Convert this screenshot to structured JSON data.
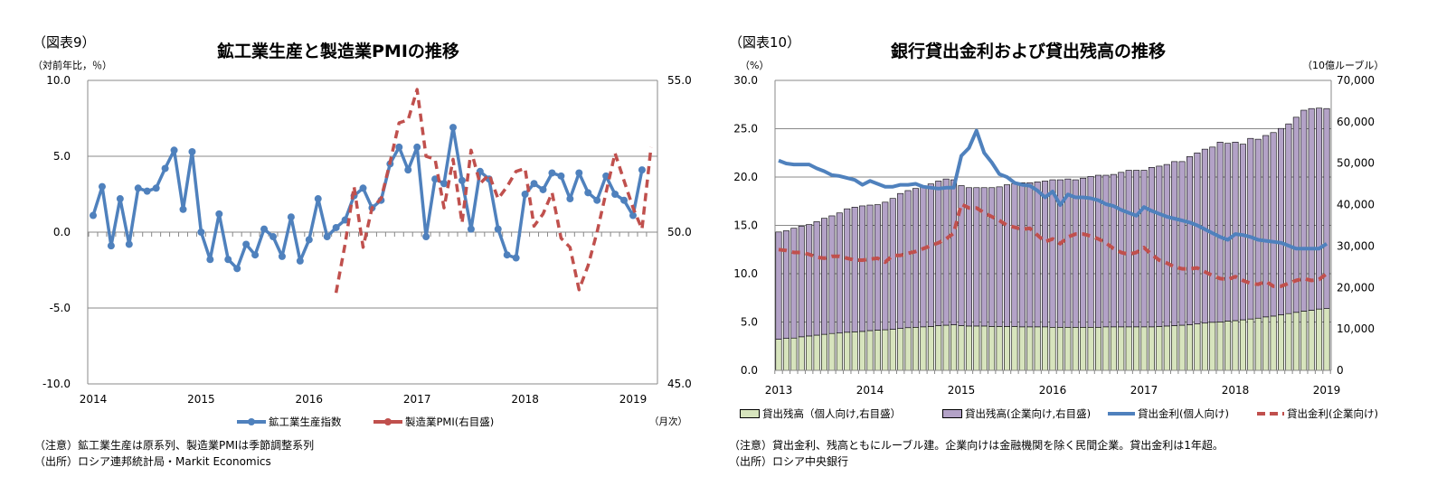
{
  "left": {
    "figure_label": "（図表9）",
    "title": "鉱工業生産と製造業PMIの推移",
    "y_unit": "（対前年比，％）",
    "x_unit": "（月次）",
    "notes": [
      "（注意）鉱工業生産は原系列、製造業PMIは季節調整系列",
      "（出所）ロシア連邦統計局・Markit Economics"
    ]
  },
  "right": {
    "figure_label": "（図表10）",
    "title": "銀行貸出金利および貸出残高の推移",
    "y_unit": "（%）",
    "y2_unit": "（10億ルーブル）",
    "notes": [
      "（注意）貸出金利、残高ともにルーブル建。企業向けは金融機関を除く民間企業。貸出金利は1年超。",
      "（出所）ロシア中央銀行"
    ]
  },
  "chart_data": [
    {
      "type": "line",
      "title": "鉱工業生産と製造業PMIの推移",
      "x_start": "2014-01",
      "x_frequency": "monthly",
      "x_ticks": [
        "2014",
        "2015",
        "2016",
        "2017",
        "2018",
        "2019"
      ],
      "ylabel": "（対前年比，％）",
      "ylim": [
        -10,
        10
      ],
      "yticks": [
        "10.0",
        "5.0",
        "0.0",
        "-5.0",
        "-10.0"
      ],
      "y2lim": [
        45,
        55
      ],
      "y2ticks": [
        "55.0",
        "50.0",
        "45.0"
      ],
      "grid": true,
      "legend": "bottom",
      "series": [
        {
          "name": "鉱工業生産指数",
          "axis": "left",
          "color": "#4f81bd",
          "style": "solid-markers",
          "start": "2014-01",
          "values": [
            1.1,
            3.0,
            -0.9,
            2.2,
            -0.8,
            2.9,
            2.7,
            2.9,
            4.2,
            5.4,
            1.5,
            5.3,
            0.0,
            -1.8,
            1.2,
            -1.8,
            -2.4,
            -0.8,
            -1.5,
            0.2,
            -0.3,
            -1.6,
            1.0,
            -1.9,
            -0.5,
            2.2,
            -0.3,
            0.3,
            0.8,
            2.4,
            2.9,
            1.6,
            2.1,
            4.5,
            5.6,
            4.1,
            5.6,
            -0.3,
            3.5,
            3.2,
            6.9,
            3.4,
            0.2,
            4.0,
            3.5,
            0.2,
            -1.5,
            -1.7,
            2.5,
            3.2,
            2.8,
            3.9,
            3.7,
            2.2,
            3.9,
            2.6,
            2.1,
            3.7,
            2.5,
            2.1,
            1.1,
            4.1
          ]
        },
        {
          "name": "製造業PMI(右目盛)",
          "axis": "right",
          "color": "#c0504d",
          "style": "dashed",
          "start": "2016-04",
          "values": [
            48.0,
            49.6,
            51.5,
            49.5,
            50.8,
            51.1,
            52.3,
            53.6,
            53.7,
            54.7,
            52.5,
            52.4,
            50.8,
            52.4,
            50.3,
            52.7,
            51.6,
            51.9,
            51.1,
            51.5,
            52.0,
            52.1,
            50.2,
            50.6,
            51.3,
            49.8,
            49.5,
            48.1,
            48.9,
            50.0,
            51.3,
            52.6,
            51.7,
            50.8,
            50.1,
            52.8
          ]
        }
      ]
    },
    {
      "type": "bar+line",
      "title": "銀行貸出金利および貸出残高の推移",
      "x_start": "2013-01",
      "x_frequency": "monthly",
      "x_ticks": [
        "2013",
        "2014",
        "2015",
        "2016",
        "2017",
        "2018",
        "2019"
      ],
      "ylabel": "（%）",
      "ylim": [
        0,
        30
      ],
      "yticks": [
        "30.0",
        "25.0",
        "20.0",
        "15.0",
        "10.0",
        "5.0",
        "0.0"
      ],
      "y2label": "（10億ルーブル）",
      "y2lim": [
        0,
        70000
      ],
      "y2ticks": [
        "70,000",
        "60,000",
        "50,000",
        "40,000",
        "30,000",
        "20,000",
        "10,000",
        "0"
      ],
      "grid": true,
      "legend": "bottom",
      "series": [
        {
          "name": "貸出残高（個人向け,右目盛）",
          "axis": "right",
          "kind": "stacked-bar",
          "color": "#d7e4bd",
          "values": [
            7500,
            7700,
            7800,
            8100,
            8300,
            8500,
            8700,
            8900,
            9000,
            9200,
            9300,
            9400,
            9600,
            9700,
            9800,
            9900,
            10100,
            10300,
            10400,
            10500,
            10600,
            10800,
            10900,
            11000,
            10800,
            10700,
            10700,
            10700,
            10600,
            10600,
            10600,
            10600,
            10500,
            10500,
            10500,
            10500,
            10400,
            10400,
            10400,
            10400,
            10400,
            10400,
            10400,
            10500,
            10500,
            10500,
            10500,
            10500,
            10500,
            10500,
            10600,
            10700,
            10800,
            10900,
            11000,
            11200,
            11400,
            11600,
            11700,
            11900,
            12000,
            12200,
            12400,
            12600,
            12900,
            13100,
            13400,
            13700,
            14000,
            14300,
            14500,
            14800,
            14900
          ]
        },
        {
          "name": "貸出残高(企業向け,右目盛)",
          "axis": "right",
          "kind": "stacked-bar",
          "color": "#b3a2c7",
          "values": [
            25900,
            26000,
            26500,
            26700,
            26900,
            27400,
            28000,
            28400,
            29000,
            29800,
            30100,
            30300,
            30300,
            30300,
            30800,
            31600,
            32600,
            33100,
            33500,
            33800,
            34400,
            34900,
            35300,
            35000,
            33800,
            33400,
            33400,
            33400,
            33500,
            33700,
            34200,
            34500,
            34800,
            34800,
            35000,
            35200,
            35600,
            35600,
            35800,
            35600,
            36000,
            36400,
            36700,
            36600,
            36800,
            37300,
            37800,
            37800,
            37800,
            38500,
            38700,
            39000,
            39600,
            39500,
            40600,
            41300,
            42000,
            42300,
            43400,
            42900,
            43100,
            42400,
            43600,
            43200,
            43800,
            44300,
            45000,
            45800,
            47100,
            48500,
            48700,
            48500,
            48300
          ]
        },
        {
          "name": "貸出金利(個人向け)",
          "axis": "left",
          "kind": "line",
          "color": "#4f81bd",
          "values": [
            21.7,
            21.4,
            21.3,
            21.3,
            21.3,
            20.9,
            20.6,
            20.2,
            20.1,
            19.9,
            19.7,
            19.2,
            19.6,
            19.3,
            19.0,
            19.0,
            19.2,
            19.2,
            19.3,
            19.0,
            18.9,
            18.8,
            18.9,
            18.9,
            22.2,
            23.0,
            24.8,
            22.5,
            21.5,
            20.3,
            20.0,
            19.4,
            19.2,
            19.1,
            18.6,
            17.9,
            18.5,
            17.1,
            18.2,
            17.9,
            17.9,
            17.8,
            17.6,
            17.2,
            17.0,
            16.6,
            16.3,
            16.0,
            16.9,
            16.5,
            16.2,
            15.9,
            15.7,
            15.5,
            15.3,
            15.0,
            14.6,
            14.2,
            13.8,
            13.5,
            14.1,
            14.0,
            13.8,
            13.5,
            13.4,
            13.3,
            13.2,
            12.9,
            12.6,
            12.6,
            12.6,
            12.6,
            13.1
          ]
        },
        {
          "name": "貸出金利(企業向け)",
          "axis": "left",
          "kind": "dashed-line",
          "color": "#c0504d",
          "values": [
            12.5,
            12.4,
            12.2,
            12.2,
            12.0,
            11.7,
            11.6,
            11.8,
            11.8,
            11.6,
            11.4,
            11.4,
            11.5,
            11.6,
            11.2,
            11.9,
            11.9,
            12.1,
            12.3,
            12.6,
            12.9,
            13.2,
            13.6,
            14.2,
            17.2,
            16.8,
            16.8,
            16.3,
            15.9,
            15.5,
            15.0,
            14.8,
            14.6,
            14.7,
            14.0,
            13.3,
            13.6,
            13.1,
            13.8,
            14.1,
            14.1,
            13.9,
            13.6,
            13.2,
            12.6,
            12.2,
            12.0,
            12.2,
            12.7,
            12.0,
            11.4,
            11.1,
            10.7,
            10.5,
            10.5,
            10.6,
            10.2,
            9.8,
            9.5,
            9.4,
            9.7,
            9.3,
            9.0,
            8.9,
            9.2,
            8.7,
            8.7,
            9.0,
            9.3,
            9.5,
            9.3,
            9.4,
            10.0
          ]
        }
      ]
    }
  ]
}
